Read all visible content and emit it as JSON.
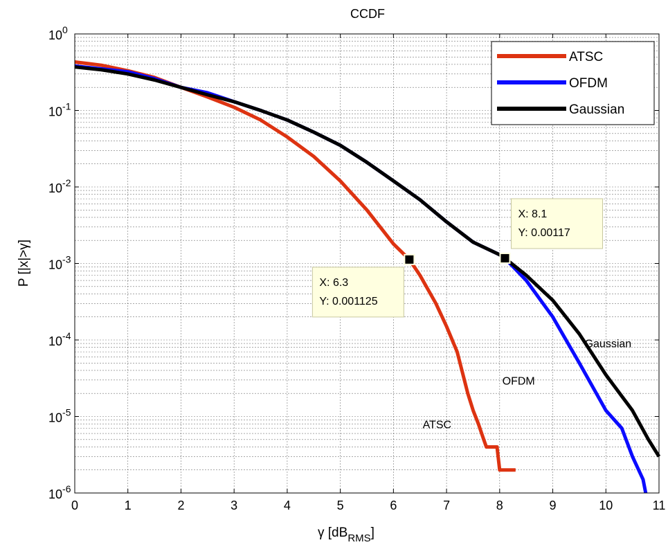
{
  "chart_data": {
    "type": "line",
    "title": "CCDF",
    "xlabel": "γ [dB",
    "xlabel_sub": "RMS",
    "xlabel_end": "]",
    "ylabel": "P [|x|>γ]",
    "xlim": [
      0,
      11
    ],
    "ylim": [
      1e-06,
      1
    ],
    "yscale": "log",
    "grid": true,
    "legend_position": "top-right",
    "x_ticks": [
      "0",
      "1",
      "2",
      "3",
      "4",
      "5",
      "6",
      "7",
      "8",
      "9",
      "10",
      "11"
    ],
    "y_ticks": [
      {
        "base": "10",
        "exp": "0"
      },
      {
        "base": "10",
        "exp": "-1"
      },
      {
        "base": "10",
        "exp": "-2"
      },
      {
        "base": "10",
        "exp": "-3"
      },
      {
        "base": "10",
        "exp": "-4"
      },
      {
        "base": "10",
        "exp": "-5"
      },
      {
        "base": "10",
        "exp": "-6"
      }
    ],
    "series": [
      {
        "name": "ATSC",
        "color": "#dd3311",
        "x": [
          0,
          0.5,
          1,
          1.5,
          2,
          2.5,
          3,
          3.5,
          4,
          4.5,
          5,
          5.5,
          6,
          6.3,
          6.5,
          6.8,
          7,
          7.2,
          7.4,
          7.5,
          7.6,
          7.7,
          7.75,
          7.8,
          7.95,
          8.0,
          8.3
        ],
        "y": [
          0.43,
          0.39,
          0.33,
          0.27,
          0.2,
          0.15,
          0.11,
          0.075,
          0.045,
          0.025,
          0.012,
          0.005,
          0.0018,
          0.001125,
          0.0007,
          0.0003,
          0.00015,
          7e-05,
          2e-05,
          1.2e-05,
          8e-06,
          5e-06,
          4e-06,
          4e-06,
          4e-06,
          2e-06,
          2e-06
        ]
      },
      {
        "name": "OFDM",
        "color": "#0b0bff",
        "x": [
          0,
          0.5,
          1,
          1.5,
          2,
          2.5,
          3,
          3.5,
          4,
          4.5,
          5,
          5.5,
          6,
          6.5,
          7,
          7.5,
          8,
          8.1,
          8.5,
          9,
          9.5,
          10,
          10.3,
          10.5,
          10.7,
          10.75
        ],
        "y": [
          0.38,
          0.35,
          0.32,
          0.26,
          0.2,
          0.17,
          0.13,
          0.1,
          0.075,
          0.052,
          0.035,
          0.021,
          0.012,
          0.0068,
          0.0035,
          0.0019,
          0.0013,
          0.00117,
          0.0006,
          0.0002,
          5e-05,
          1.2e-05,
          7e-06,
          3e-06,
          1.5e-06,
          1e-06
        ]
      },
      {
        "name": "Gaussian",
        "color": "#000000",
        "x": [
          0,
          0.5,
          1,
          1.5,
          2,
          2.5,
          3,
          3.5,
          4,
          4.5,
          5,
          5.5,
          6,
          6.5,
          7,
          7.5,
          8,
          8.1,
          8.5,
          9,
          9.5,
          10,
          10.5,
          10.8,
          11
        ],
        "y": [
          0.37,
          0.34,
          0.3,
          0.25,
          0.2,
          0.16,
          0.13,
          0.1,
          0.075,
          0.052,
          0.035,
          0.021,
          0.012,
          0.0068,
          0.0035,
          0.0019,
          0.0013,
          0.00117,
          0.0007,
          0.00033,
          0.00012,
          3.5e-05,
          1.2e-05,
          5e-06,
          3e-06
        ]
      }
    ],
    "text_annotations": [
      {
        "text": "Gaussian",
        "x": 9.6,
        "y": 8e-05
      },
      {
        "text": "OFDM",
        "x": 8.05,
        "y": 2.6e-05
      },
      {
        "text": "ATSC",
        "x": 6.55,
        "y": 7e-06
      }
    ],
    "data_tips": [
      {
        "x_text": "X: 6.3",
        "y_text": "Y: 0.001125",
        "x": 6.3,
        "y": 0.001125,
        "box": "below-left"
      },
      {
        "x_text": "X: 8.1",
        "y_text": "Y: 0.00117",
        "x": 8.1,
        "y": 0.00117,
        "box": "above-right"
      }
    ]
  }
}
